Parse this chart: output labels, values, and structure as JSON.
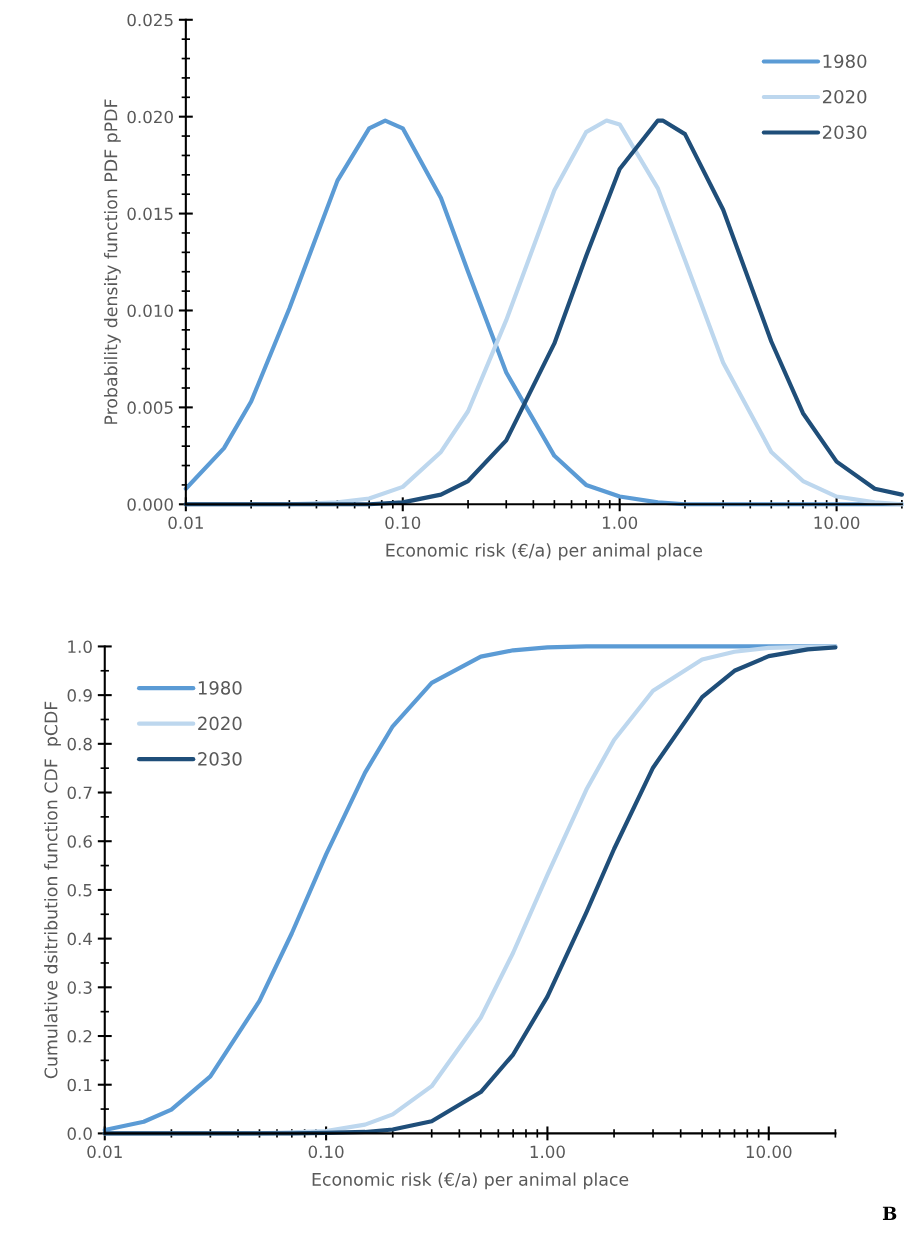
{
  "chart_data": [
    {
      "type": "line",
      "xlabel": "Economic risk (€/a) per animal place",
      "ylabel": "Probability density function PDF pPDF",
      "log": "x",
      "xlim": [
        0.01,
        20
      ],
      "ylim": [
        0,
        0.025
      ],
      "xticks": [
        {
          "value": 0.01,
          "label": "0.01"
        },
        {
          "value": 0.1,
          "label": "0.10"
        },
        {
          "value": 1,
          "label": "1.00"
        },
        {
          "value": 10,
          "label": "10.00"
        }
      ],
      "yticks": [
        {
          "value": 0,
          "label": "0.000"
        },
        {
          "value": 0.005,
          "label": "0.005"
        },
        {
          "value": 0.01,
          "label": "0.010"
        },
        {
          "value": 0.015,
          "label": "0.015"
        },
        {
          "value": 0.02,
          "label": "0.020"
        },
        {
          "value": 0.025,
          "label": "0.025"
        }
      ],
      "grid": false,
      "legend": "top right",
      "marker": "none",
      "line_style": "solid",
      "series": [
        {
          "name": "1980",
          "color": "#5b9bd5",
          "x": [
            0.01,
            0.015,
            0.02,
            0.03,
            0.05,
            0.07,
            0.083,
            0.1,
            0.15,
            0.2,
            0.3,
            0.5,
            0.7,
            1,
            1.5,
            2,
            3,
            5,
            7,
            10,
            15,
            20
          ],
          "values": [
            0.0008,
            0.0029,
            0.0053,
            0.0101,
            0.0167,
            0.0194,
            0.0198,
            0.0194,
            0.0158,
            0.012,
            0.0068,
            0.0025,
            0.001,
            0.0004,
            0.0001,
            0,
            0,
            0,
            0,
            0,
            0,
            0
          ]
        },
        {
          "name": "2020",
          "color": "#bdd7ee",
          "x": [
            0.01,
            0.015,
            0.02,
            0.03,
            0.05,
            0.07,
            0.1,
            0.15,
            0.2,
            0.3,
            0.5,
            0.7,
            0.87,
            1,
            1.5,
            2,
            3,
            5,
            7,
            10,
            15,
            20
          ],
          "values": [
            0,
            0,
            0,
            0,
            0.0001,
            0.0003,
            0.0009,
            0.0027,
            0.0048,
            0.0095,
            0.0162,
            0.0192,
            0.0198,
            0.0196,
            0.0163,
            0.0126,
            0.0073,
            0.0027,
            0.0012,
            0.0004,
            0.0001,
            0
          ]
        },
        {
          "name": "2030",
          "color": "#1f4e79",
          "x": [
            0.01,
            0.015,
            0.02,
            0.03,
            0.05,
            0.07,
            0.1,
            0.15,
            0.2,
            0.3,
            0.5,
            0.7,
            1,
            1.5,
            1.58,
            2,
            3,
            5,
            7,
            10,
            15,
            20
          ],
          "values": [
            0,
            0,
            0,
            0,
            0,
            0,
            0.0001,
            0.0005,
            0.0012,
            0.0033,
            0.0083,
            0.0128,
            0.0173,
            0.0198,
            0.0198,
            0.0191,
            0.0152,
            0.0084,
            0.0047,
            0.0022,
            0.0008,
            0.0005
          ]
        }
      ]
    },
    {
      "type": "line",
      "xlabel": "Economic risk (€/a) per animal place",
      "ylabel": "Cumulative dsitribution function CDF  pCDF",
      "log": "x",
      "xlim": [
        0.01,
        20
      ],
      "ylim": [
        0,
        1
      ],
      "xticks": [
        {
          "value": 0.01,
          "label": "0.01"
        },
        {
          "value": 0.1,
          "label": "0.10"
        },
        {
          "value": 1,
          "label": "1.00"
        },
        {
          "value": 10,
          "label": "10.00"
        }
      ],
      "yticks": [
        {
          "value": 0,
          "label": "0.0"
        },
        {
          "value": 0.1,
          "label": "0.1"
        },
        {
          "value": 0.2,
          "label": "0.2"
        },
        {
          "value": 0.3,
          "label": "0.3"
        },
        {
          "value": 0.4,
          "label": "0.4"
        },
        {
          "value": 0.5,
          "label": "0.5"
        },
        {
          "value": 0.6,
          "label": "0.6"
        },
        {
          "value": 0.7,
          "label": "0.7"
        },
        {
          "value": 0.8,
          "label": "0.8"
        },
        {
          "value": 0.9,
          "label": "0.9"
        },
        {
          "value": 1,
          "label": "1.0"
        }
      ],
      "grid": false,
      "legend": "top left",
      "marker": "none",
      "line_style": "solid",
      "annotations": [
        "B"
      ],
      "series": [
        {
          "name": "1980",
          "color": "#5b9bd5",
          "x": [
            0.01,
            0.015,
            0.02,
            0.03,
            0.05,
            0.07,
            0.1,
            0.15,
            0.2,
            0.3,
            0.5,
            0.7,
            1,
            1.5,
            2,
            3,
            5,
            7,
            10,
            15,
            20
          ],
          "values": [
            0.007,
            0.024,
            0.049,
            0.117,
            0.272,
            0.411,
            0.573,
            0.741,
            0.836,
            0.925,
            0.979,
            0.992,
            0.998,
            1,
            1,
            1,
            1,
            1,
            1,
            1,
            1
          ]
        },
        {
          "name": "2020",
          "color": "#bdd7ee",
          "x": [
            0.01,
            0.015,
            0.02,
            0.03,
            0.05,
            0.07,
            0.1,
            0.15,
            0.2,
            0.3,
            0.5,
            0.7,
            1,
            1.5,
            2,
            3,
            5,
            7,
            10,
            15,
            20
          ],
          "values": [
            0,
            0,
            0,
            0,
            0,
            0.002,
            0.005,
            0.018,
            0.039,
            0.097,
            0.238,
            0.371,
            0.531,
            0.706,
            0.808,
            0.909,
            0.973,
            0.989,
            0.997,
            0.999,
            1
          ]
        },
        {
          "name": "2030",
          "color": "#1f4e79",
          "x": [
            0.01,
            0.015,
            0.02,
            0.03,
            0.05,
            0.07,
            0.1,
            0.15,
            0.2,
            0.3,
            0.5,
            0.7,
            1,
            1.5,
            2,
            3,
            5,
            7,
            10,
            15,
            20
          ],
          "values": [
            0,
            0,
            0,
            0,
            0,
            0,
            0.001,
            0.003,
            0.008,
            0.025,
            0.085,
            0.162,
            0.281,
            0.454,
            0.584,
            0.751,
            0.896,
            0.95,
            0.98,
            0.994,
            0.998
          ]
        }
      ]
    }
  ]
}
